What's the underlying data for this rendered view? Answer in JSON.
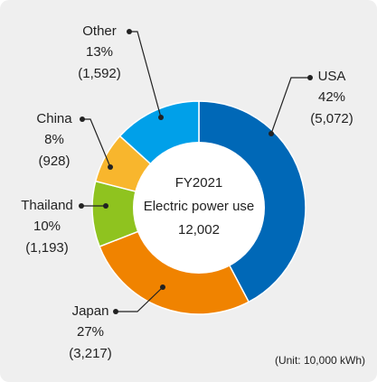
{
  "chart_data": {
    "type": "donut",
    "categories": [
      "USA",
      "Japan",
      "Thailand",
      "China",
      "Other"
    ],
    "values": [
      5072,
      3217,
      1193,
      928,
      1592
    ],
    "value_labels": [
      "(5,072)",
      "(3,217)",
      "(1,193)",
      "(928)",
      "(1,592)"
    ],
    "shares": [
      42,
      27,
      10,
      8,
      13
    ],
    "share_labels": [
      "42%",
      "27%",
      "10%",
      "8%",
      "13%"
    ],
    "colors": [
      "#0068b7",
      "#f08300",
      "#8fc31f",
      "#f8b62d",
      "#00a0e9"
    ],
    "center_title": "FY2021",
    "center_subtitle": "Electric power use",
    "total": {
      "value": 12002,
      "label": "12,002"
    },
    "note": "(Unit: 10,000 kWh)"
  }
}
